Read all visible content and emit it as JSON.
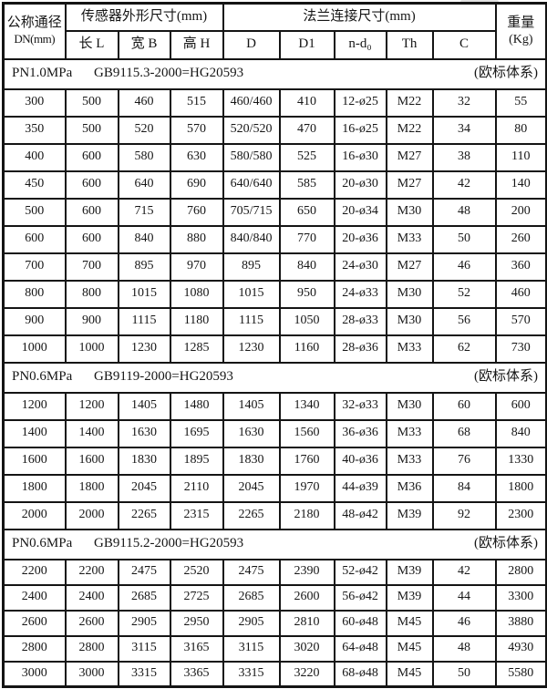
{
  "table": {
    "header": {
      "col_dn_title": "公称通径",
      "col_dn_sub": "DN(mm)",
      "group_sensor": "传感器外形尺寸(mm)",
      "sensor_cols": [
        "长 L",
        "宽 B",
        "高 H"
      ],
      "group_flange": "法兰连接尺寸(mm)",
      "flange_cols": [
        "D",
        "D1",
        "n-d₀",
        "Th",
        "C"
      ],
      "col_weight_title": "重量",
      "col_weight_sub": "(Kg)"
    },
    "sections": [
      {
        "pressure": "PN1.0MPa",
        "standard": "GB9115.3-2000=HG20593",
        "note": "(欧标体系)",
        "rows": [
          [
            "300",
            "500",
            "460",
            "515",
            "460/460",
            "410",
            "12-ø25",
            "M22",
            "32",
            "55"
          ],
          [
            "350",
            "500",
            "520",
            "570",
            "520/520",
            "470",
            "16-ø25",
            "M22",
            "34",
            "80"
          ],
          [
            "400",
            "600",
            "580",
            "630",
            "580/580",
            "525",
            "16-ø30",
            "M27",
            "38",
            "110"
          ],
          [
            "450",
            "600",
            "640",
            "690",
            "640/640",
            "585",
            "20-ø30",
            "M27",
            "42",
            "140"
          ],
          [
            "500",
            "600",
            "715",
            "760",
            "705/715",
            "650",
            "20-ø34",
            "M30",
            "48",
            "200"
          ],
          [
            "600",
            "600",
            "840",
            "880",
            "840/840",
            "770",
            "20-ø36",
            "M33",
            "50",
            "260"
          ],
          [
            "700",
            "700",
            "895",
            "970",
            "895",
            "840",
            "24-ø30",
            "M27",
            "46",
            "360"
          ],
          [
            "800",
            "800",
            "1015",
            "1080",
            "1015",
            "950",
            "24-ø33",
            "M30",
            "52",
            "460"
          ],
          [
            "900",
            "900",
            "1115",
            "1180",
            "1115",
            "1050",
            "28-ø33",
            "M30",
            "56",
            "570"
          ],
          [
            "1000",
            "1000",
            "1230",
            "1285",
            "1230",
            "1160",
            "28-ø36",
            "M33",
            "62",
            "730"
          ]
        ]
      },
      {
        "pressure": "PN0.6MPa",
        "standard": "GB9119-2000=HG20593",
        "note": "(欧标体系)",
        "rows": [
          [
            "1200",
            "1200",
            "1405",
            "1480",
            "1405",
            "1340",
            "32-ø33",
            "M30",
            "60",
            "600"
          ],
          [
            "1400",
            "1400",
            "1630",
            "1695",
            "1630",
            "1560",
            "36-ø36",
            "M33",
            "68",
            "840"
          ],
          [
            "1600",
            "1600",
            "1830",
            "1895",
            "1830",
            "1760",
            "40-ø36",
            "M33",
            "76",
            "1330"
          ],
          [
            "1800",
            "1800",
            "2045",
            "2110",
            "2045",
            "1970",
            "44-ø39",
            "M36",
            "84",
            "1800"
          ],
          [
            "2000",
            "2000",
            "2265",
            "2315",
            "2265",
            "2180",
            "48-ø42",
            "M39",
            "92",
            "2300"
          ]
        ]
      },
      {
        "pressure": "PN0.6MPa",
        "standard": "GB9115.2-2000=HG20593",
        "note": "(欧标体系)",
        "rows": [
          [
            "2200",
            "2200",
            "2475",
            "2520",
            "2475",
            "2390",
            "52-ø42",
            "M39",
            "42",
            "2800"
          ],
          [
            "2400",
            "2400",
            "2685",
            "2725",
            "2685",
            "2600",
            "56-ø42",
            "M39",
            "44",
            "3300"
          ],
          [
            "2600",
            "2600",
            "2905",
            "2950",
            "2905",
            "2810",
            "60-ø48",
            "M45",
            "46",
            "3880"
          ],
          [
            "2800",
            "2800",
            "3115",
            "3165",
            "3115",
            "3020",
            "64-ø48",
            "M45",
            "48",
            "4930"
          ],
          [
            "3000",
            "3000",
            "3315",
            "3365",
            "3315",
            "3220",
            "68-ø48",
            "M45",
            "50",
            "5580"
          ]
        ]
      }
    ]
  }
}
